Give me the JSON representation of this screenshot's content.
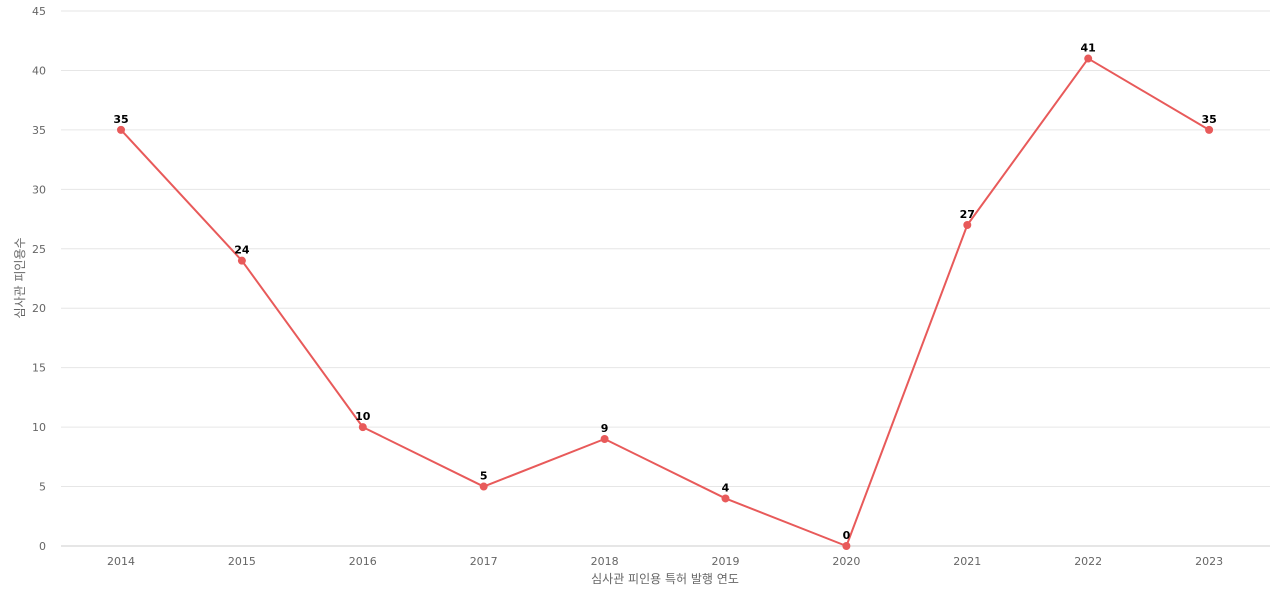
{
  "chart_data": {
    "type": "line",
    "title": "",
    "xlabel": "심사관 피인용 특허 발행 연도",
    "ylabel": "심사관 피인용수",
    "categories": [
      "2014",
      "2015",
      "2016",
      "2017",
      "2018",
      "2019",
      "2020",
      "2021",
      "2022",
      "2023"
    ],
    "series": [
      {
        "values": [
          35,
          24,
          10,
          5,
          9,
          4,
          0,
          27,
          41,
          35
        ],
        "color": "#e85a5a"
      }
    ],
    "ylim": [
      0,
      45
    ],
    "yticks": [
      0,
      5,
      10,
      15,
      20,
      25,
      30,
      35,
      40,
      45
    ],
    "grid": true,
    "legend": "none",
    "data_labels": true
  }
}
